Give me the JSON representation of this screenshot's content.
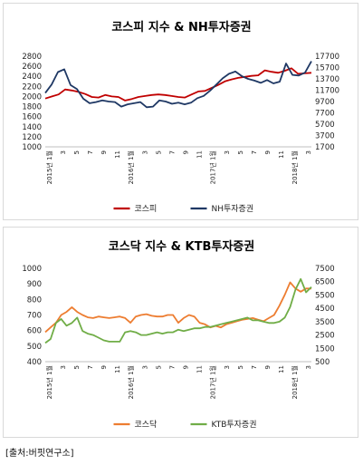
{
  "source": "[출처:버핏연구소]",
  "x_labels": [
    "2015년 1월",
    "3",
    "5",
    "7",
    "9",
    "11",
    "2016년 1월",
    "3",
    "5",
    "7",
    "9",
    "11",
    "2017년 1월",
    "3",
    "5",
    "7",
    "9",
    "11",
    "2018년 1월",
    "3"
  ],
  "chart_data": [
    {
      "type": "line",
      "title": "코스피 지수 & NH투자증권",
      "y_left": {
        "min": 1000,
        "max": 2800,
        "ticks": [
          1000,
          1200,
          1400,
          1600,
          1800,
          2000,
          2200,
          2400,
          2600,
          2800
        ]
      },
      "y_right": {
        "min": 1700,
        "max": 17700,
        "ticks": [
          1700,
          3700,
          5700,
          7700,
          9700,
          11700,
          13700,
          15700,
          17700
        ]
      },
      "series": [
        {
          "name": "코스피",
          "axis": "left",
          "color": "#c00000",
          "values": [
            1960,
            2000,
            2040,
            2140,
            2120,
            2090,
            2050,
            1990,
            1980,
            2030,
            2000,
            1990,
            1920,
            1950,
            1990,
            2010,
            2030,
            2040,
            2030,
            2010,
            1990,
            1980,
            2040,
            2100,
            2110,
            2170,
            2230,
            2300,
            2340,
            2370,
            2390,
            2410,
            2420,
            2520,
            2490,
            2470,
            2510,
            2560,
            2450,
            2460,
            2470
          ]
        },
        {
          "name": "NH투자증권",
          "axis": "right",
          "color": "#1f3864",
          "values": [
            11200,
            12700,
            14900,
            15400,
            12600,
            11900,
            10200,
            9400,
            9600,
            9900,
            9700,
            9600,
            8800,
            9200,
            9400,
            9600,
            8700,
            8800,
            9900,
            9700,
            9300,
            9500,
            9200,
            9500,
            10300,
            10700,
            11600,
            12700,
            13800,
            14600,
            15000,
            14200,
            13700,
            13400,
            13000,
            13500,
            12900,
            13200,
            16400,
            14400,
            14300,
            14800,
            16800
          ]
        }
      ]
    },
    {
      "type": "line",
      "title": "코스닥 지수 & KTB투자증권",
      "y_left": {
        "min": 400,
        "max": 1000,
        "ticks": [
          400,
          500,
          600,
          700,
          800,
          900,
          1000
        ]
      },
      "y_right": {
        "min": 500,
        "max": 7500,
        "ticks": [
          500,
          1500,
          2500,
          3500,
          4500,
          5500,
          6500,
          7500
        ]
      },
      "series": [
        {
          "name": "코스닥",
          "axis": "left",
          "color": "#ed7d31",
          "values": [
            590,
            620,
            650,
            700,
            720,
            750,
            720,
            700,
            685,
            680,
            690,
            685,
            680,
            685,
            690,
            680,
            650,
            690,
            700,
            705,
            695,
            690,
            690,
            700,
            700,
            650,
            680,
            700,
            690,
            650,
            640,
            620,
            630,
            620,
            640,
            650,
            660,
            670,
            675,
            680,
            670,
            660,
            680,
            700,
            760,
            830,
            910,
            870,
            850,
            870,
            870
          ]
        },
        {
          "name": "KTB투자증권",
          "axis": "right",
          "color": "#70ad47",
          "values": [
            1900,
            2200,
            3400,
            3700,
            3200,
            3400,
            3800,
            2800,
            2600,
            2500,
            2300,
            2100,
            2000,
            2000,
            2000,
            2700,
            2800,
            2700,
            2500,
            2500,
            2600,
            2700,
            2600,
            2700,
            2700,
            2900,
            2800,
            2900,
            3000,
            3000,
            3100,
            3100,
            3200,
            3300,
            3400,
            3500,
            3600,
            3700,
            3800,
            3600,
            3600,
            3500,
            3400,
            3400,
            3500,
            3800,
            4600,
            5900,
            6700,
            5700,
            6100
          ]
        }
      ]
    }
  ]
}
